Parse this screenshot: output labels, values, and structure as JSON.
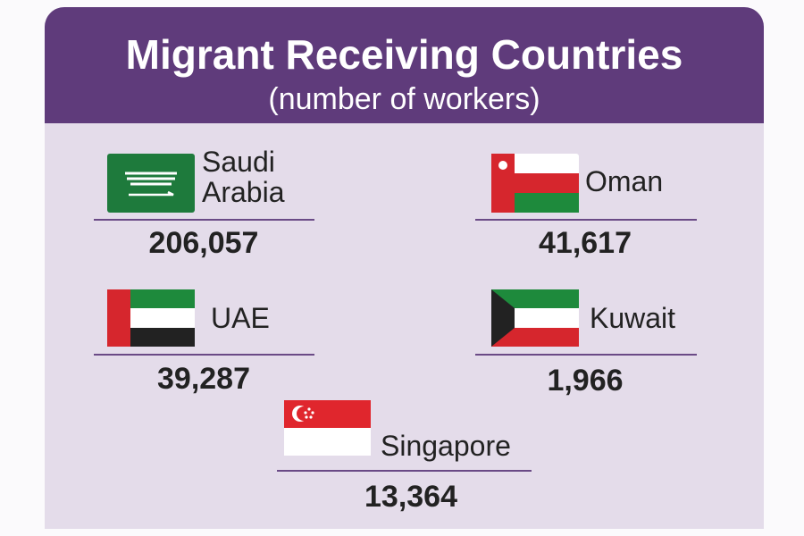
{
  "header": {
    "title": "Migrant Receiving Countries",
    "subtitle": "(number of workers)"
  },
  "countries": [
    {
      "name": "Saudi Arabia",
      "value": "206,057"
    },
    {
      "name": "Oman",
      "value": "41,617"
    },
    {
      "name": "UAE",
      "value": "39,287"
    },
    {
      "name": "Kuwait",
      "value": "1,966"
    },
    {
      "name": "Singapore",
      "value": "13,364"
    }
  ]
}
